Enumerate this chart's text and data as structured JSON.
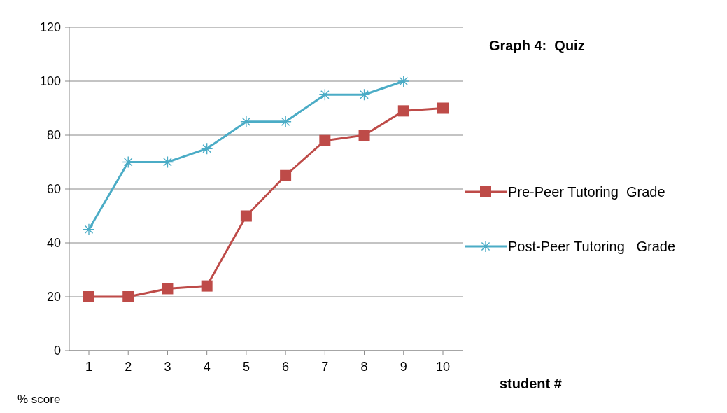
{
  "chart_data": {
    "type": "line",
    "title": "Graph 4:  Quiz",
    "xlabel": "student #",
    "ylabel": "% score",
    "categories": [
      "1",
      "2",
      "3",
      "4",
      "5",
      "6",
      "7",
      "8",
      "9",
      "10"
    ],
    "series": [
      {
        "name": "Pre-Peer Tutoring  Grade",
        "color": "#be4b48",
        "marker": "square",
        "values": [
          20,
          20,
          23,
          24,
          50,
          65,
          78,
          80,
          89,
          90
        ]
      },
      {
        "name": "Post-Peer Tutoring   Grade",
        "color": "#4bacc6",
        "marker": "cross",
        "values": [
          45,
          70,
          70,
          75,
          85,
          85,
          95,
          95,
          100,
          null
        ]
      }
    ],
    "ylim": [
      0,
      120
    ],
    "yticks": [
      0,
      20,
      40,
      60,
      80,
      100,
      120
    ],
    "grid": "y",
    "legend": "right",
    "line_style": "solid"
  }
}
